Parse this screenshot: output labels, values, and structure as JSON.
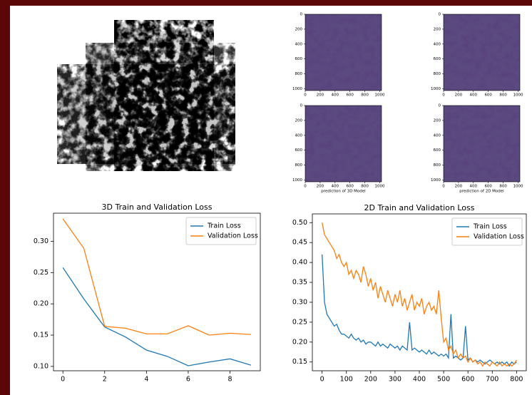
{
  "chart_data": [
    {
      "type": "image",
      "xlim": [
        0,
        1024
      ],
      "ylim": [
        1024,
        0
      ],
      "xticks": [
        0,
        200,
        400,
        600,
        800,
        1000
      ],
      "yticks": [
        0,
        200,
        400,
        600,
        800,
        1000
      ]
    },
    {
      "type": "image",
      "xlim": [
        0,
        1024
      ],
      "ylim": [
        1024,
        0
      ],
      "xticks": [
        0,
        200,
        400,
        600,
        800,
        1000
      ],
      "yticks": [
        0,
        200,
        400,
        600,
        800,
        1000
      ]
    },
    {
      "type": "image",
      "xlim": [
        0,
        1024
      ],
      "ylim": [
        1024,
        0
      ],
      "xticks": [
        0,
        200,
        400,
        600,
        800,
        1000
      ],
      "yticks": [
        0,
        200,
        400,
        600,
        800,
        1000
      ],
      "xlabel": "prediction of 3D Model"
    },
    {
      "type": "image",
      "xlim": [
        0,
        1024
      ],
      "ylim": [
        1024,
        0
      ],
      "xticks": [
        0,
        200,
        400,
        600,
        800,
        1000
      ],
      "yticks": [
        0,
        200,
        400,
        600,
        800,
        1000
      ],
      "xlabel": "prediction of 2D Model"
    },
    {
      "type": "line",
      "title": "3D Train and Validation Loss",
      "x": [
        0,
        1,
        2,
        3,
        4,
        5,
        6,
        7,
        8,
        9
      ],
      "series": [
        {
          "name": "Train Loss",
          "color": "#1f77b4",
          "values": [
            0.258,
            0.208,
            0.163,
            0.147,
            0.126,
            0.116,
            0.101,
            0.107,
            0.112,
            0.102
          ]
        },
        {
          "name": "Validation Loss",
          "color": "#ff7f0e",
          "values": [
            0.336,
            0.289,
            0.164,
            0.161,
            0.152,
            0.152,
            0.165,
            0.15,
            0.153,
            0.151
          ]
        }
      ],
      "xlim": [
        -0.45,
        9.45
      ],
      "ylim": [
        0.093,
        0.345
      ],
      "xticks": [
        0,
        2,
        4,
        6,
        8
      ],
      "yticks": [
        {
          "value": 0.1,
          "label": "0.10"
        },
        0.15,
        {
          "value": 0.2,
          "label": "0.20"
        },
        0.25,
        {
          "value": 0.3,
          "label": "0.30"
        }
      ],
      "legend": "upper right"
    },
    {
      "type": "line",
      "title": "2D Train and Validation Loss",
      "x": [
        0,
        10,
        20,
        30,
        40,
        50,
        60,
        70,
        80,
        90,
        100,
        110,
        120,
        130,
        140,
        150,
        160,
        170,
        180,
        190,
        200,
        210,
        220,
        230,
        240,
        250,
        260,
        270,
        280,
        290,
        300,
        310,
        320,
        330,
        340,
        350,
        360,
        370,
        380,
        390,
        400,
        410,
        420,
        430,
        440,
        450,
        460,
        470,
        480,
        490,
        500,
        510,
        520,
        530,
        540,
        550,
        560,
        570,
        580,
        590,
        600,
        610,
        620,
        630,
        640,
        650,
        660,
        670,
        680,
        690,
        700,
        710,
        720,
        730,
        740,
        750,
        760,
        770,
        780,
        790,
        800
      ],
      "series": [
        {
          "name": "Train Loss",
          "color": "#1f77b4",
          "values": [
            0.42,
            0.3,
            0.27,
            0.26,
            0.25,
            0.24,
            0.245,
            0.23,
            0.22,
            0.22,
            0.215,
            0.21,
            0.22,
            0.21,
            0.205,
            0.21,
            0.2,
            0.205,
            0.195,
            0.2,
            0.2,
            0.195,
            0.19,
            0.2,
            0.19,
            0.195,
            0.19,
            0.185,
            0.195,
            0.19,
            0.185,
            0.19,
            0.18,
            0.19,
            0.185,
            0.18,
            0.25,
            0.18,
            0.185,
            0.18,
            0.175,
            0.18,
            0.175,
            0.17,
            0.18,
            0.17,
            0.175,
            0.17,
            0.165,
            0.17,
            0.165,
            0.17,
            0.16,
            0.27,
            0.16,
            0.165,
            0.16,
            0.155,
            0.16,
            0.24,
            0.155,
            0.16,
            0.15,
            0.155,
            0.15,
            0.155,
            0.15,
            0.145,
            0.15,
            0.155,
            0.15,
            0.145,
            0.15,
            0.145,
            0.15,
            0.145,
            0.15,
            0.14,
            0.15,
            0.145,
            0.15
          ]
        },
        {
          "name": "Validation Loss",
          "color": "#ff7f0e",
          "values": [
            0.5,
            0.47,
            0.46,
            0.45,
            0.44,
            0.43,
            0.41,
            0.42,
            0.4,
            0.39,
            0.4,
            0.37,
            0.38,
            0.36,
            0.38,
            0.37,
            0.35,
            0.39,
            0.37,
            0.34,
            0.36,
            0.33,
            0.35,
            0.31,
            0.34,
            0.32,
            0.3,
            0.33,
            0.31,
            0.29,
            0.32,
            0.3,
            0.33,
            0.29,
            0.31,
            0.28,
            0.3,
            0.32,
            0.28,
            0.3,
            0.29,
            0.31,
            0.27,
            0.29,
            0.3,
            0.28,
            0.29,
            0.27,
            0.33,
            0.26,
            0.2,
            0.21,
            0.18,
            0.19,
            0.17,
            0.18,
            0.16,
            0.17,
            0.16,
            0.165,
            0.15,
            0.16,
            0.15,
            0.155,
            0.145,
            0.15,
            0.14,
            0.15,
            0.145,
            0.14,
            0.15,
            0.145,
            0.14,
            0.15,
            0.14,
            0.145,
            0.14,
            0.145,
            0.14,
            0.145,
            0.155
          ]
        }
      ],
      "xlim": [
        -40,
        840
      ],
      "ylim": [
        0.128,
        0.522
      ],
      "xticks": [
        0,
        100,
        200,
        300,
        400,
        500,
        600,
        700,
        800
      ],
      "yticks": [
        0.15,
        {
          "value": 0.2,
          "label": "0.20"
        },
        0.25,
        {
          "value": 0.3,
          "label": "0.30"
        },
        0.35,
        {
          "value": 0.4,
          "label": "0.40"
        },
        0.45,
        {
          "value": 0.5,
          "label": "0.50"
        }
      ],
      "legend": "upper right"
    }
  ]
}
